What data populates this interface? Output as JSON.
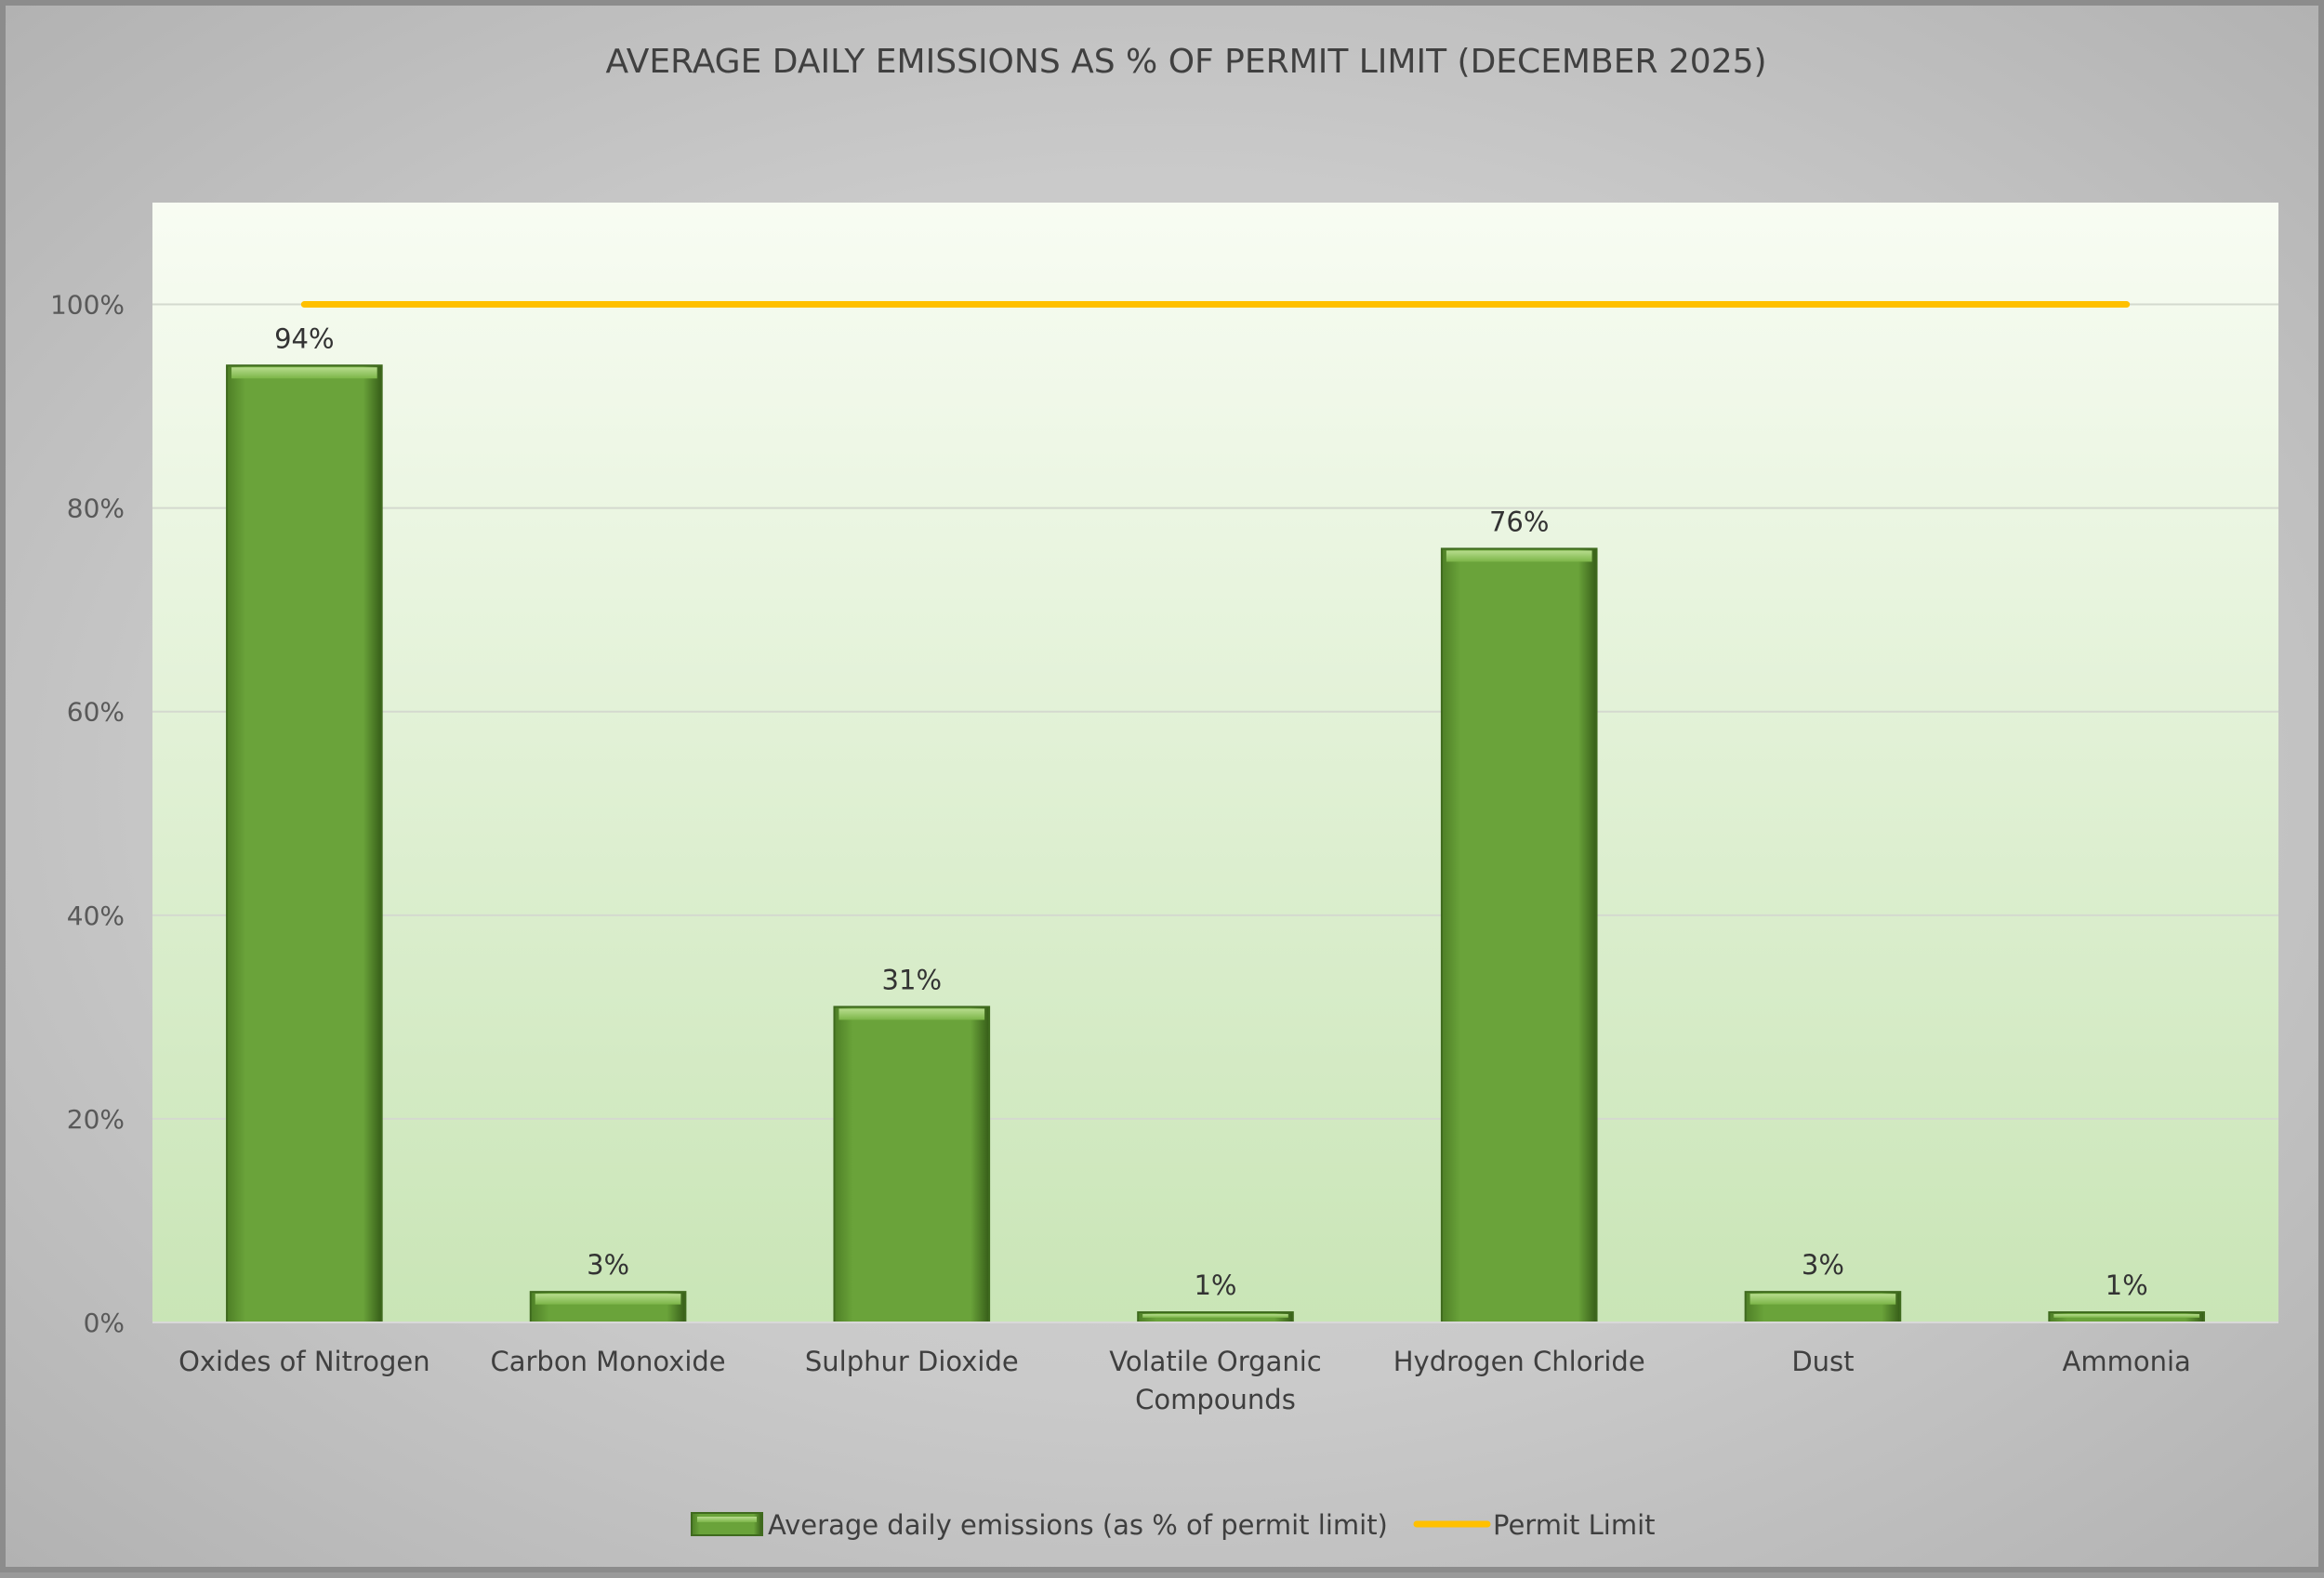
{
  "chart_data": {
    "type": "bar",
    "title": "AVERAGE DAILY EMISSIONS AS % OF PERMIT LIMIT (DECEMBER 2025)",
    "categories": [
      [
        "Oxides of Nitrogen"
      ],
      [
        "Carbon Monoxide"
      ],
      [
        "Sulphur Dioxide"
      ],
      [
        "Volatile Organic",
        "Compounds"
      ],
      [
        "Hydrogen Chloride"
      ],
      [
        "Dust"
      ],
      [
        "Ammonia"
      ]
    ],
    "series": [
      {
        "name": "Average daily emissions (as % of permit limit)",
        "type": "bar",
        "color": "#6a9f38",
        "values": [
          94,
          3,
          31,
          1,
          76,
          3,
          1
        ],
        "labels": [
          "94%",
          "3%",
          "31%",
          "1%",
          "76%",
          "3%",
          "1%"
        ]
      },
      {
        "name": "Permit Limit",
        "type": "line",
        "color": "#ffc000",
        "values": [
          100,
          100,
          100,
          100,
          100,
          100,
          100
        ]
      }
    ],
    "ylim": [
      0,
      110
    ],
    "yticks": [
      0,
      20,
      40,
      60,
      80,
      100
    ],
    "ytick_labels": [
      "0%",
      "20%",
      "40%",
      "60%",
      "80%",
      "100%"
    ],
    "grid": true,
    "legend": "bottom"
  }
}
